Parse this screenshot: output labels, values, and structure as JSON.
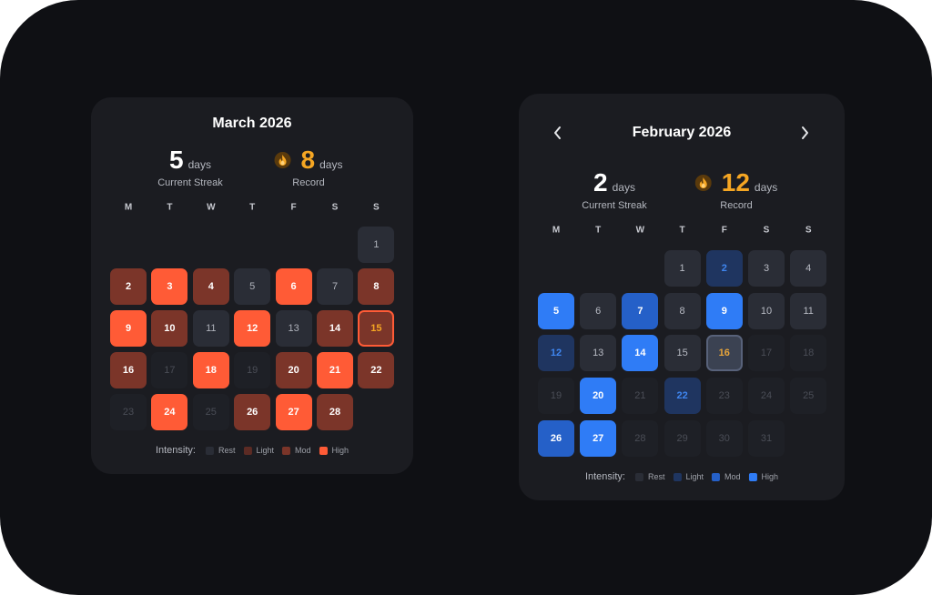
{
  "cards": [
    {
      "title": "March 2026",
      "current_streak": {
        "value": "5",
        "unit": "days",
        "label": "Current Streak"
      },
      "record": {
        "value": "8",
        "unit": "days",
        "label": "Record"
      },
      "weekdays": [
        "M",
        "T",
        "W",
        "T",
        "F",
        "S",
        "S"
      ],
      "level_colors": {
        "rest": {
          "bg": "#2a2d36",
          "text": "#aeb1ba"
        },
        "light": {
          "bg": "#5c2b24",
          "text": "#ffffff"
        },
        "mod": {
          "bg": "#7b3529",
          "text": "#ffffff"
        },
        "high": {
          "bg": "#ff5b36",
          "text": "#ffffff"
        },
        "future": {
          "bg": "#1e2026",
          "text": "#4a4d56"
        },
        "today": {
          "bg": "#7b3529",
          "text": "#f5a623",
          "border": "#ff5b36"
        }
      },
      "weeks": [
        [
          null,
          null,
          null,
          null,
          null,
          null,
          {
            "day": "1",
            "level": "rest"
          }
        ],
        [
          {
            "day": "2",
            "level": "mod"
          },
          {
            "day": "3",
            "level": "high"
          },
          {
            "day": "4",
            "level": "mod"
          },
          {
            "day": "5",
            "level": "rest"
          },
          {
            "day": "6",
            "level": "high"
          },
          {
            "day": "7",
            "level": "rest"
          },
          {
            "day": "8",
            "level": "mod"
          }
        ],
        [
          {
            "day": "9",
            "level": "high"
          },
          {
            "day": "10",
            "level": "mod"
          },
          {
            "day": "11",
            "level": "rest"
          },
          {
            "day": "12",
            "level": "high"
          },
          {
            "day": "13",
            "level": "rest"
          },
          {
            "day": "14",
            "level": "mod"
          },
          {
            "day": "15",
            "level": "today"
          }
        ],
        [
          {
            "day": "16",
            "level": "mod"
          },
          {
            "day": "17",
            "level": "future"
          },
          {
            "day": "18",
            "level": "high"
          },
          {
            "day": "19",
            "level": "future"
          },
          {
            "day": "20",
            "level": "mod"
          },
          {
            "day": "21",
            "level": "high"
          },
          {
            "day": "22",
            "level": "mod"
          }
        ],
        [
          {
            "day": "23",
            "level": "future"
          },
          {
            "day": "24",
            "level": "high"
          },
          {
            "day": "25",
            "level": "future"
          },
          {
            "day": "26",
            "level": "mod"
          },
          {
            "day": "27",
            "level": "high"
          },
          {
            "day": "28",
            "level": "mod"
          },
          null
        ]
      ],
      "legend": {
        "label": "Intensity:",
        "items": [
          {
            "name": "Rest",
            "level": "rest"
          },
          {
            "name": "Light",
            "level": "light"
          },
          {
            "name": "Mod",
            "level": "mod"
          },
          {
            "name": "High",
            "level": "high"
          }
        ]
      }
    },
    {
      "title": "February 2026",
      "current_streak": {
        "value": "2",
        "unit": "days",
        "label": "Current Streak"
      },
      "record": {
        "value": "12",
        "unit": "days",
        "label": "Record"
      },
      "weekdays": [
        "M",
        "T",
        "W",
        "T",
        "F",
        "S",
        "S"
      ],
      "level_colors": {
        "rest": {
          "bg": "#2a2d36",
          "text": "#b8bbc4"
        },
        "light": {
          "bg": "#1f3560",
          "text": "#3f86f0"
        },
        "mod": {
          "bg": "#2560c8",
          "text": "#ffffff"
        },
        "high": {
          "bg": "#2f7cf6",
          "text": "#ffffff"
        },
        "future": {
          "bg": "#1e2026",
          "text": "#4a4d56"
        },
        "today": {
          "bg": "#3b4252",
          "text": "#e8a53a",
          "border": "#58627a"
        }
      },
      "weeks": [
        [
          null,
          null,
          null,
          {
            "day": "1",
            "level": "rest"
          },
          {
            "day": "2",
            "level": "light"
          },
          {
            "day": "3",
            "level": "rest"
          },
          {
            "day": "4",
            "level": "rest"
          }
        ],
        [
          {
            "day": "5",
            "level": "high"
          },
          {
            "day": "6",
            "level": "rest"
          },
          {
            "day": "7",
            "level": "mod"
          },
          {
            "day": "8",
            "level": "rest"
          },
          {
            "day": "9",
            "level": "high"
          },
          {
            "day": "10",
            "level": "rest"
          },
          {
            "day": "11",
            "level": "rest"
          }
        ],
        [
          {
            "day": "12",
            "level": "light"
          },
          {
            "day": "13",
            "level": "rest"
          },
          {
            "day": "14",
            "level": "high"
          },
          {
            "day": "15",
            "level": "rest"
          },
          {
            "day": "16",
            "level": "today"
          },
          {
            "day": "17",
            "level": "future"
          },
          {
            "day": "18",
            "level": "future"
          }
        ],
        [
          {
            "day": "19",
            "level": "future"
          },
          {
            "day": "20",
            "level": "high"
          },
          {
            "day": "21",
            "level": "future"
          },
          {
            "day": "22",
            "level": "light"
          },
          {
            "day": "23",
            "level": "future"
          },
          {
            "day": "24",
            "level": "future"
          },
          {
            "day": "25",
            "level": "future"
          }
        ],
        [
          {
            "day": "26",
            "level": "mod"
          },
          {
            "day": "27",
            "level": "high"
          },
          {
            "day": "28",
            "level": "future"
          },
          {
            "day": "29",
            "level": "future"
          },
          {
            "day": "30",
            "level": "future"
          },
          {
            "day": "31",
            "level": "future"
          },
          null
        ]
      ],
      "legend": {
        "label": "Intensity:",
        "items": [
          {
            "name": "Rest",
            "level": "rest"
          },
          {
            "name": "Light",
            "level": "light"
          },
          {
            "name": "Mod",
            "level": "mod"
          },
          {
            "name": "High",
            "level": "high"
          }
        ]
      }
    }
  ]
}
